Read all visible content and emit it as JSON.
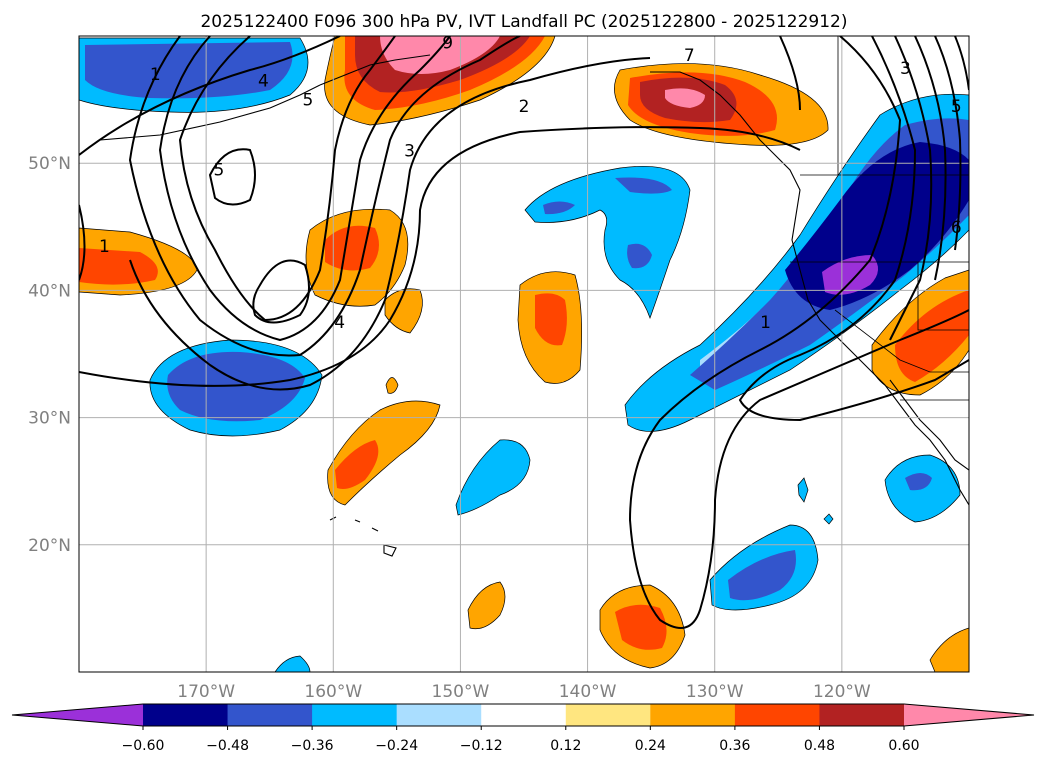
{
  "chart_data": {
    "type": "heatmap",
    "title": "2025122400 F096 300 hPa PV, IVT Landfall PC (2025122800 - 2025122912)",
    "map": {
      "lon_range": [
        -180,
        -110
      ],
      "lat_range": [
        10,
        60
      ],
      "x_ticks": [
        {
          "lon": -170,
          "label": "170°W"
        },
        {
          "lon": -160,
          "label": "160°W"
        },
        {
          "lon": -150,
          "label": "150°W"
        },
        {
          "lon": -140,
          "label": "140°W"
        },
        {
          "lon": -130,
          "label": "130°W"
        },
        {
          "lon": -120,
          "label": "120°W"
        }
      ],
      "y_ticks": [
        {
          "lat": 50,
          "label": "50°N"
        },
        {
          "lat": 40,
          "label": "40°N"
        },
        {
          "lat": 30,
          "label": "30°N"
        },
        {
          "lat": 20,
          "label": "20°N"
        }
      ],
      "grid": true
    },
    "colorbar": {
      "orientation": "horizontal",
      "extend": "both",
      "tick_labels": [
        "−0.60",
        "−0.48",
        "−0.36",
        "−0.24",
        "−0.12",
        "0.12",
        "0.24",
        "0.36",
        "0.48",
        "0.60"
      ],
      "colors": [
        "#9b30d9",
        "#00008b",
        "#3355cc",
        "#00bbff",
        "#aadeff",
        "#ffffff",
        "#ffe680",
        "#ffa500",
        "#ff4500",
        "#b22222",
        "#ff88aa"
      ]
    },
    "contour_labels": [
      {
        "text": "1",
        "lon": -178,
        "lat": 43.5
      },
      {
        "text": "1",
        "lon": -174,
        "lat": 57
      },
      {
        "text": "4",
        "lon": -165.5,
        "lat": 56.5
      },
      {
        "text": "5",
        "lon": -169,
        "lat": 49.5
      },
      {
        "text": "5",
        "lon": -162,
        "lat": 55
      },
      {
        "text": "3",
        "lon": -154,
        "lat": 51
      },
      {
        "text": "2",
        "lon": -145,
        "lat": 54.5
      },
      {
        "text": "4",
        "lon": -159.5,
        "lat": 37.5
      },
      {
        "text": "7",
        "lon": -132,
        "lat": 58.5
      },
      {
        "text": "9",
        "lon": -151,
        "lat": 59.5
      },
      {
        "text": "3",
        "lon": -115,
        "lat": 57.5
      },
      {
        "text": "5",
        "lon": -111,
        "lat": 54.5
      },
      {
        "text": "1",
        "lon": -126,
        "lat": 37.5
      },
      {
        "text": "6",
        "lon": -111,
        "lat": 45
      }
    ]
  }
}
